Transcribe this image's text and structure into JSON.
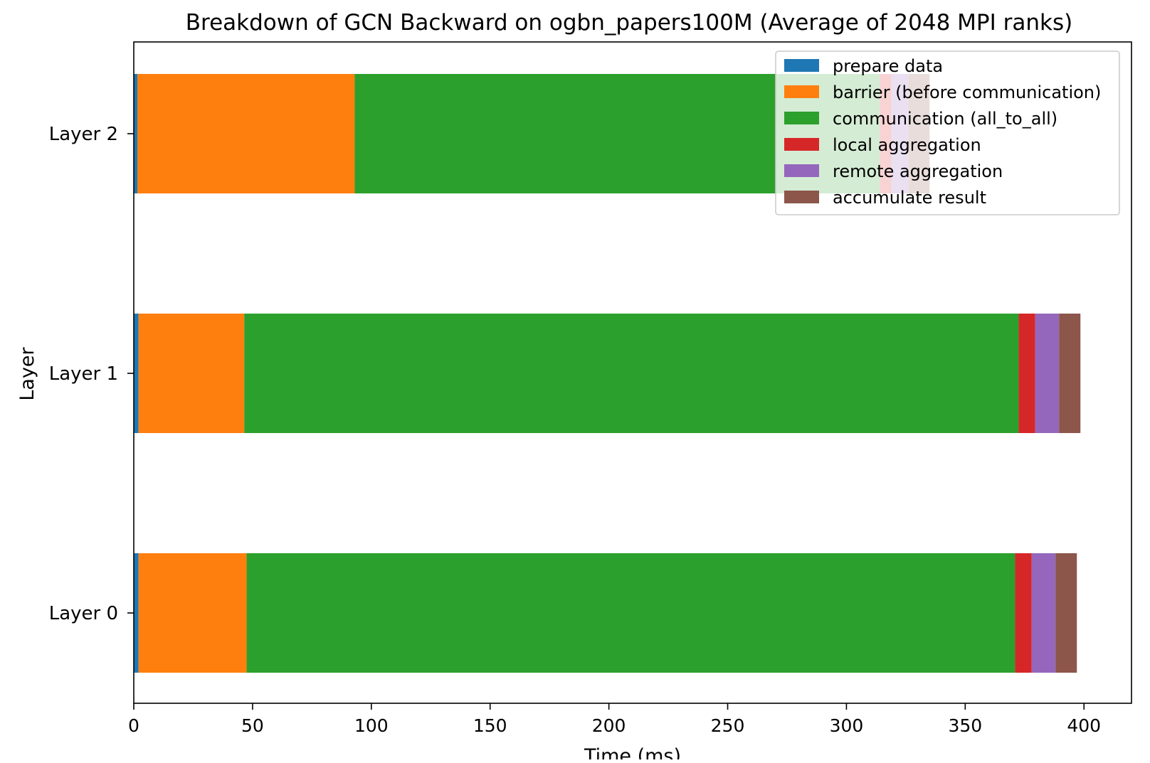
{
  "chart_data": {
    "type": "bar",
    "orientation": "horizontal",
    "stacked": true,
    "title": "Breakdown of GCN Backward on ogbn_papers100M (Average of 2048 MPI ranks)",
    "xlabel": "Time (ms)",
    "ylabel": "Layer",
    "xlim": [
      0,
      420
    ],
    "xticks": [
      0,
      50,
      100,
      150,
      200,
      250,
      300,
      350,
      400
    ],
    "categories": [
      "Layer 0",
      "Layer 1",
      "Layer 2"
    ],
    "grid": false,
    "legend_position": "top-right",
    "series": [
      {
        "name": "prepare data",
        "color": "#1f77b4",
        "values": [
          2,
          2,
          1.5
        ]
      },
      {
        "name": "barrier (before communication)",
        "color": "#ff7f0e",
        "values": [
          45.5,
          44.5,
          91.5
        ]
      },
      {
        "name": "communication (all_to_all)",
        "color": "#2ca02c",
        "values": [
          323.5,
          326,
          221
        ]
      },
      {
        "name": "local aggregation",
        "color": "#d62728",
        "values": [
          7,
          7,
          5
        ]
      },
      {
        "name": "remote aggregation",
        "color": "#9467bd",
        "values": [
          10,
          10,
          7
        ]
      },
      {
        "name": "accumulate result",
        "color": "#8c564b",
        "values": [
          9,
          9,
          9
        ]
      }
    ]
  }
}
